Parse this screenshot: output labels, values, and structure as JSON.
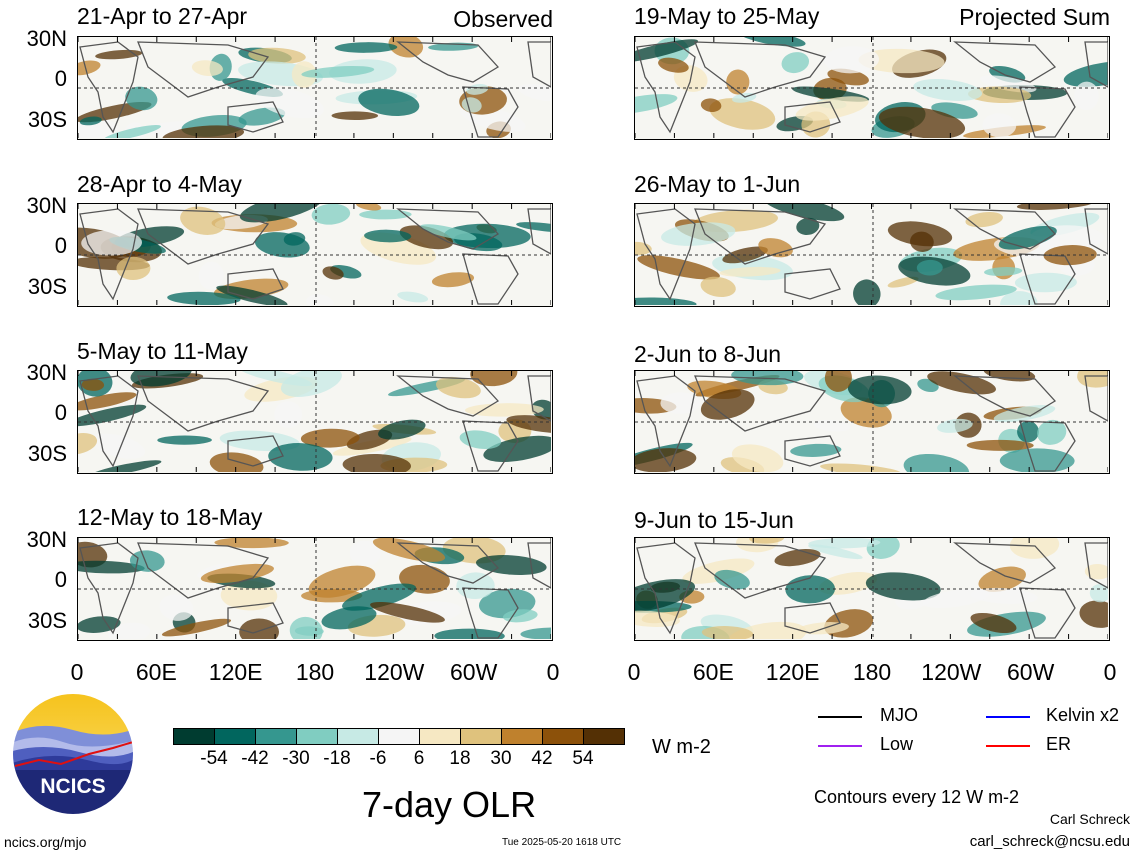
{
  "header": {
    "observed_label": "Observed",
    "projected_label": "Projected Sum"
  },
  "panels_left": [
    {
      "title": "21-Apr to 27-Apr"
    },
    {
      "title": "28-Apr to 4-May"
    },
    {
      "title": "5-May to 11-May"
    },
    {
      "title": "12-May to 18-May"
    }
  ],
  "panels_right": [
    {
      "title": "19-May to 25-May"
    },
    {
      "title": "26-May to 1-Jun"
    },
    {
      "title": "2-Jun to 8-Jun"
    },
    {
      "title": "9-Jun to 15-Jun"
    }
  ],
  "y_ticks": [
    "30N",
    "0",
    "30S"
  ],
  "x_ticks": [
    "0",
    "60E",
    "120E",
    "180",
    "120W",
    "60W",
    "0"
  ],
  "colorbar": {
    "colors": [
      "#003c30",
      "#01665e",
      "#35978f",
      "#80cdc1",
      "#c7eae5",
      "#f5f5f5",
      "#f6e8c3",
      "#dfc27d",
      "#bf812d",
      "#8c510a",
      "#543005"
    ],
    "ticks": [
      "-54",
      "-42",
      "-30",
      "-18",
      "-6",
      "6",
      "18",
      "30",
      "42",
      "54"
    ],
    "units": "W m-2"
  },
  "main_title": "7-day OLR",
  "legend": {
    "items": [
      {
        "label": "MJO",
        "color": "#000000"
      },
      {
        "label": "Kelvin x2",
        "color": "#0000ff"
      },
      {
        "label": "Low",
        "color": "#a020f0"
      },
      {
        "label": "ER",
        "color": "#ff0000"
      }
    ],
    "contours_note": "Contours every 12 W m-2"
  },
  "logo": {
    "text": "NCICS"
  },
  "footer": {
    "url": "ncics.org/mjo",
    "timestamp": "Tue 2025-05-20 1618 UTC",
    "author": "Carl Schreck",
    "email": "carl_schreck@ncsu.edu"
  }
}
